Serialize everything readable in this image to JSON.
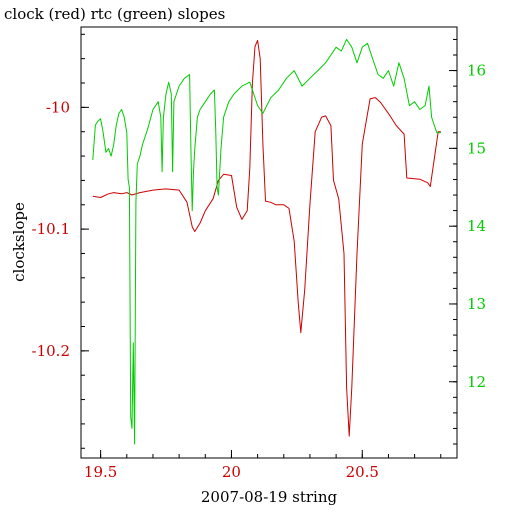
{
  "chart_data": {
    "type": "line",
    "title": "clock (red) rtc (green) slopes",
    "xlabel": "2007-08-19 string",
    "ylabel": "clockslope",
    "xlim": [
      19.425,
      20.862
    ],
    "x_ticks": [
      "19.5",
      "20",
      "20.5"
    ],
    "x_tick_values": [
      19.5,
      20.0,
      20.5
    ],
    "y_left": {
      "label": "clockslope",
      "lim": [
        -10.288,
        -9.934
      ],
      "ticks": [
        "-10",
        "-10.1",
        "-10.2"
      ],
      "tick_values": [
        -10.0,
        -10.1,
        -10.2
      ],
      "color": "#cc0000"
    },
    "y_right": {
      "lim": [
        11.02,
        16.56
      ],
      "ticks": [
        "16",
        "15",
        "14",
        "13",
        "12"
      ],
      "tick_values": [
        16,
        15,
        14,
        13,
        12
      ],
      "color": "#00cc00"
    },
    "grid": false,
    "series": [
      {
        "name": "clock",
        "color": "#cc0000",
        "axis": "left",
        "points": [
          [
            19.47,
            -10.073
          ],
          [
            19.5,
            -10.074
          ],
          [
            19.53,
            -10.071
          ],
          [
            19.55,
            -10.07
          ],
          [
            19.58,
            -10.071
          ],
          [
            19.6,
            -10.07
          ],
          [
            19.62,
            -10.072
          ],
          [
            19.65,
            -10.07
          ],
          [
            19.7,
            -10.068
          ],
          [
            19.75,
            -10.067
          ],
          [
            19.8,
            -10.068
          ],
          [
            19.83,
            -10.078
          ],
          [
            19.85,
            -10.098
          ],
          [
            19.86,
            -10.102
          ],
          [
            19.88,
            -10.095
          ],
          [
            19.9,
            -10.085
          ],
          [
            19.93,
            -10.075
          ],
          [
            19.95,
            -10.06
          ],
          [
            19.97,
            -10.055
          ],
          [
            20.0,
            -10.056
          ],
          [
            20.02,
            -10.082
          ],
          [
            20.04,
            -10.092
          ],
          [
            20.06,
            -10.085
          ],
          [
            20.07,
            -10.05
          ],
          [
            20.08,
            -9.98
          ],
          [
            20.09,
            -9.95
          ],
          [
            20.1,
            -9.945
          ],
          [
            20.11,
            -9.96
          ],
          [
            20.12,
            -10.03
          ],
          [
            20.13,
            -10.077
          ],
          [
            20.15,
            -10.078
          ],
          [
            20.17,
            -10.08
          ],
          [
            20.2,
            -10.08
          ],
          [
            20.22,
            -10.083
          ],
          [
            20.24,
            -10.11
          ],
          [
            20.255,
            -10.16
          ],
          [
            20.265,
            -10.185
          ],
          [
            20.28,
            -10.15
          ],
          [
            20.3,
            -10.08
          ],
          [
            20.32,
            -10.02
          ],
          [
            20.345,
            -10.008
          ],
          [
            20.36,
            -10.007
          ],
          [
            20.38,
            -10.015
          ],
          [
            20.39,
            -10.06
          ],
          [
            20.41,
            -10.075
          ],
          [
            20.43,
            -10.12
          ],
          [
            20.44,
            -10.23
          ],
          [
            20.45,
            -10.27
          ],
          [
            20.46,
            -10.23
          ],
          [
            20.48,
            -10.12
          ],
          [
            20.5,
            -10.03
          ],
          [
            20.53,
            -9.993
          ],
          [
            20.55,
            -9.992
          ],
          [
            20.57,
            -9.996
          ],
          [
            20.6,
            -10.005
          ],
          [
            20.63,
            -10.015
          ],
          [
            20.66,
            -10.022
          ],
          [
            20.67,
            -10.058
          ],
          [
            20.72,
            -10.059
          ],
          [
            20.75,
            -10.062
          ],
          [
            20.76,
            -10.065
          ],
          [
            20.79,
            -10.02
          ],
          [
            20.8,
            -10.02
          ]
        ]
      },
      {
        "name": "rtc",
        "color": "#00cc00",
        "axis": "right",
        "points": [
          [
            19.47,
            14.85
          ],
          [
            19.48,
            15.3
          ],
          [
            19.49,
            15.35
          ],
          [
            19.5,
            15.38
          ],
          [
            19.51,
            15.2
          ],
          [
            19.52,
            14.95
          ],
          [
            19.53,
            15.0
          ],
          [
            19.54,
            14.9
          ],
          [
            19.55,
            15.05
          ],
          [
            19.56,
            15.3
          ],
          [
            19.57,
            15.45
          ],
          [
            19.58,
            15.5
          ],
          [
            19.59,
            15.4
          ],
          [
            19.6,
            15.2
          ],
          [
            19.605,
            14.6
          ],
          [
            19.61,
            14.5
          ],
          [
            19.615,
            11.55
          ],
          [
            19.62,
            11.4
          ],
          [
            19.625,
            12.5
          ],
          [
            19.63,
            11.2
          ],
          [
            19.635,
            14.3
          ],
          [
            19.64,
            14.8
          ],
          [
            19.65,
            14.9
          ],
          [
            19.66,
            15.05
          ],
          [
            19.68,
            15.25
          ],
          [
            19.7,
            15.5
          ],
          [
            19.72,
            15.6
          ],
          [
            19.73,
            15.4
          ],
          [
            19.735,
            14.7
          ],
          [
            19.74,
            15.4
          ],
          [
            19.75,
            15.7
          ],
          [
            19.76,
            15.85
          ],
          [
            19.77,
            15.7
          ],
          [
            19.775,
            14.7
          ],
          [
            19.78,
            15.6
          ],
          [
            19.8,
            15.8
          ],
          [
            19.82,
            15.9
          ],
          [
            19.84,
            15.95
          ],
          [
            19.845,
            15.0
          ],
          [
            19.85,
            14.2
          ],
          [
            19.855,
            14.7
          ],
          [
            19.86,
            15.0
          ],
          [
            19.87,
            15.4
          ],
          [
            19.88,
            15.5
          ],
          [
            19.9,
            15.6
          ],
          [
            19.92,
            15.7
          ],
          [
            19.935,
            15.75
          ],
          [
            19.94,
            15.2
          ],
          [
            19.945,
            14.5
          ],
          [
            19.95,
            14.4
          ],
          [
            19.96,
            15.0
          ],
          [
            19.97,
            15.4
          ],
          [
            19.99,
            15.6
          ],
          [
            20.01,
            15.7
          ],
          [
            20.04,
            15.8
          ],
          [
            20.07,
            15.85
          ],
          [
            20.1,
            15.55
          ],
          [
            20.12,
            15.45
          ],
          [
            20.15,
            15.65
          ],
          [
            20.18,
            15.75
          ],
          [
            20.21,
            15.9
          ],
          [
            20.24,
            16.0
          ],
          [
            20.27,
            15.8
          ],
          [
            20.3,
            15.9
          ],
          [
            20.33,
            16.0
          ],
          [
            20.36,
            16.1
          ],
          [
            20.38,
            16.2
          ],
          [
            20.4,
            16.3
          ],
          [
            20.42,
            16.25
          ],
          [
            20.44,
            16.4
          ],
          [
            20.46,
            16.3
          ],
          [
            20.48,
            16.1
          ],
          [
            20.5,
            16.3
          ],
          [
            20.52,
            16.35
          ],
          [
            20.54,
            16.15
          ],
          [
            20.56,
            15.95
          ],
          [
            20.58,
            15.9
          ],
          [
            20.6,
            16.0
          ],
          [
            20.62,
            15.8
          ],
          [
            20.64,
            16.1
          ],
          [
            20.66,
            15.9
          ],
          [
            20.68,
            15.55
          ],
          [
            20.7,
            15.6
          ],
          [
            20.72,
            15.5
          ],
          [
            20.74,
            15.55
          ],
          [
            20.755,
            15.8
          ],
          [
            20.765,
            15.4
          ],
          [
            20.775,
            15.3
          ],
          [
            20.785,
            15.2
          ],
          [
            20.8,
            15.2
          ]
        ]
      }
    ]
  }
}
